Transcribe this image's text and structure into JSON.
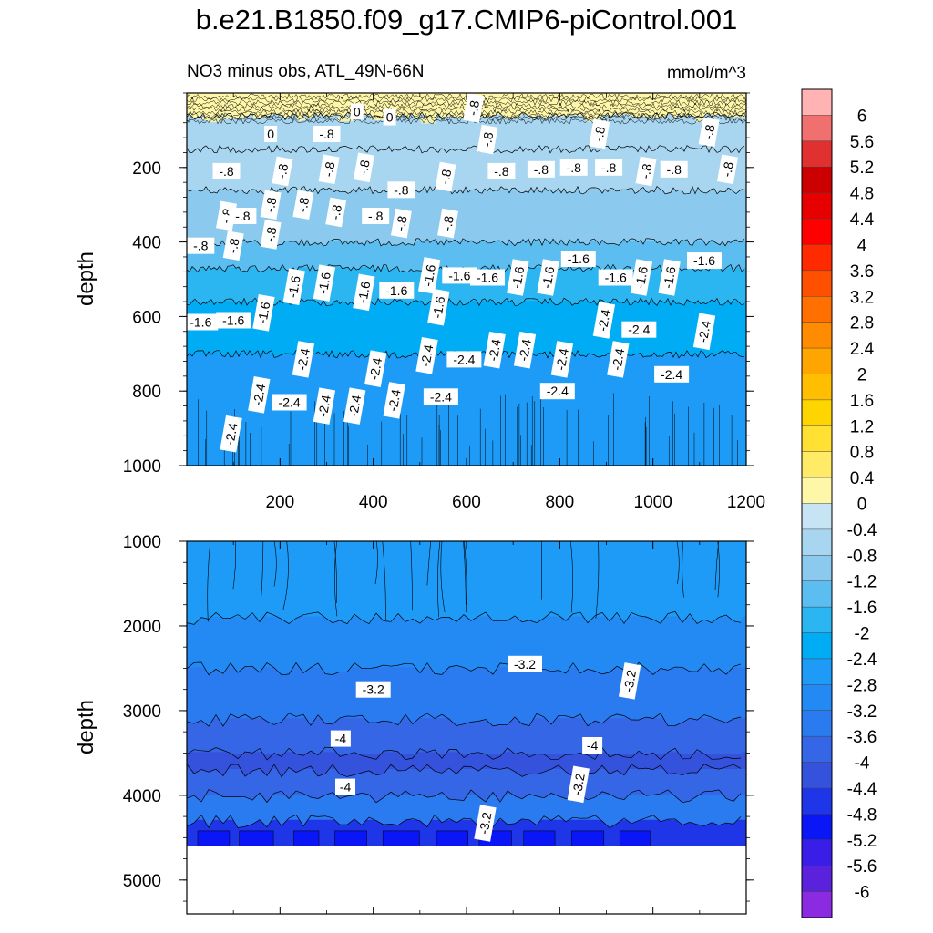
{
  "figure": {
    "title": "b.e21.B1850.f09_g17.CMIP6-piControl.001",
    "subtitle_left": "NO3 minus obs, ATL_49N-66N",
    "units": "mmol/m^3"
  },
  "chart_data": [
    {
      "type": "contour",
      "panel": "upper",
      "ylabel": "depth",
      "xlabel": "",
      "xlim": [
        0,
        1200
      ],
      "ylim": [
        1000,
        0
      ],
      "x_ticks": [
        200,
        400,
        600,
        800,
        1000,
        1200
      ],
      "y_ticks": [
        200,
        400,
        600,
        800,
        1000
      ],
      "bands": [
        {
          "depth_top": 0,
          "depth_bottom": 60,
          "value": 0.2
        },
        {
          "depth_top": 60,
          "depth_bottom": 150,
          "value": -0.5
        },
        {
          "depth_top": 150,
          "depth_bottom": 260,
          "value": -0.8
        },
        {
          "depth_top": 260,
          "depth_bottom": 400,
          "value": -1.1
        },
        {
          "depth_top": 400,
          "depth_bottom": 470,
          "value": -1.4
        },
        {
          "depth_top": 470,
          "depth_bottom": 560,
          "value": -1.8
        },
        {
          "depth_top": 560,
          "depth_bottom": 700,
          "value": -2.2
        },
        {
          "depth_top": 700,
          "depth_bottom": 1000,
          "value": -2.6
        }
      ],
      "contour_labels": [
        {
          "text": "0",
          "x": 180,
          "depth": 110
        },
        {
          "text": "0",
          "x": 365,
          "depth": 50
        },
        {
          "text": "0",
          "x": 435,
          "depth": 65
        },
        {
          "text": "-.8",
          "x": 615,
          "depth": 40
        },
        {
          "text": "-.8",
          "x": 300,
          "depth": 110
        },
        {
          "text": "-.8",
          "x": 645,
          "depth": 125
        },
        {
          "text": "-.8",
          "x": 885,
          "depth": 110
        },
        {
          "text": "-.8",
          "x": 1120,
          "depth": 105
        },
        {
          "text": "-.8",
          "x": 85,
          "depth": 210
        },
        {
          "text": "-.8",
          "x": 205,
          "depth": 210
        },
        {
          "text": "-.8",
          "x": 305,
          "depth": 205
        },
        {
          "text": "-.8",
          "x": 380,
          "depth": 200
        },
        {
          "text": "-.8",
          "x": 555,
          "depth": 225
        },
        {
          "text": "-.8",
          "x": 675,
          "depth": 210
        },
        {
          "text": "-.8",
          "x": 760,
          "depth": 205
        },
        {
          "text": "-.8",
          "x": 830,
          "depth": 200
        },
        {
          "text": "-.8",
          "x": 905,
          "depth": 200
        },
        {
          "text": "-.8",
          "x": 985,
          "depth": 210
        },
        {
          "text": "-.8",
          "x": 1045,
          "depth": 205
        },
        {
          "text": "-.8",
          "x": 1160,
          "depth": 205
        },
        {
          "text": "-.8",
          "x": 85,
          "depth": 330
        },
        {
          "text": "-.8",
          "x": 120,
          "depth": 330
        },
        {
          "text": "-.8",
          "x": 180,
          "depth": 300
        },
        {
          "text": "-.8",
          "x": 250,
          "depth": 300
        },
        {
          "text": "-.8",
          "x": 320,
          "depth": 320
        },
        {
          "text": "-.8",
          "x": 405,
          "depth": 330
        },
        {
          "text": "-.8",
          "x": 460,
          "depth": 260
        },
        {
          "text": "-.8",
          "x": 560,
          "depth": 350
        },
        {
          "text": "-.8",
          "x": 30,
          "depth": 410
        },
        {
          "text": "-.8",
          "x": 100,
          "depth": 410
        },
        {
          "text": "-.8",
          "x": 180,
          "depth": 380
        },
        {
          "text": "-.8",
          "x": 460,
          "depth": 350
        },
        {
          "text": "-1.6",
          "x": 30,
          "depth": 615
        },
        {
          "text": "-1.6",
          "x": 100,
          "depth": 610
        },
        {
          "text": "-1.6",
          "x": 165,
          "depth": 590
        },
        {
          "text": "-1.6",
          "x": 230,
          "depth": 520
        },
        {
          "text": "-1.6",
          "x": 295,
          "depth": 510
        },
        {
          "text": "-1.6",
          "x": 380,
          "depth": 535
        },
        {
          "text": "-1.6",
          "x": 450,
          "depth": 530
        },
        {
          "text": "-1.6",
          "x": 520,
          "depth": 490
        },
        {
          "text": "-1.6",
          "x": 585,
          "depth": 490
        },
        {
          "text": "-1.6",
          "x": 645,
          "depth": 495
        },
        {
          "text": "-1.6",
          "x": 710,
          "depth": 495
        },
        {
          "text": "-1.6",
          "x": 775,
          "depth": 495
        },
        {
          "text": "-1.6",
          "x": 840,
          "depth": 445
        },
        {
          "text": "-1.6",
          "x": 920,
          "depth": 495
        },
        {
          "text": "-1.6",
          "x": 975,
          "depth": 495
        },
        {
          "text": "-1.6",
          "x": 1035,
          "depth": 495
        },
        {
          "text": "-1.6",
          "x": 1110,
          "depth": 450
        },
        {
          "text": "-1.6",
          "x": 540,
          "depth": 575
        },
        {
          "text": "-2.4",
          "x": 895,
          "depth": 610
        },
        {
          "text": "-2.4",
          "x": 970,
          "depth": 635
        },
        {
          "text": "-2.4",
          "x": 1110,
          "depth": 640
        },
        {
          "text": "-2.4",
          "x": 250,
          "depth": 715
        },
        {
          "text": "-2.4",
          "x": 515,
          "depth": 705
        },
        {
          "text": "-2.4",
          "x": 595,
          "depth": 715
        },
        {
          "text": "-2.4",
          "x": 660,
          "depth": 690
        },
        {
          "text": "-2.4",
          "x": 725,
          "depth": 690
        },
        {
          "text": "-2.4",
          "x": 805,
          "depth": 715
        },
        {
          "text": "-2.4",
          "x": 925,
          "depth": 715
        },
        {
          "text": "-2.4",
          "x": 1040,
          "depth": 755
        },
        {
          "text": "-2.4",
          "x": 405,
          "depth": 740
        },
        {
          "text": "-2.4",
          "x": 155,
          "depth": 810
        },
        {
          "text": "-2.4",
          "x": 220,
          "depth": 830
        },
        {
          "text": "-2.4",
          "x": 295,
          "depth": 840
        },
        {
          "text": "-2.4",
          "x": 360,
          "depth": 840
        },
        {
          "text": "-2.4",
          "x": 445,
          "depth": 825
        },
        {
          "text": "-2.4",
          "x": 545,
          "depth": 815
        },
        {
          "text": "-2.4",
          "x": 795,
          "depth": 800
        },
        {
          "text": "-2.4",
          "x": 95,
          "depth": 915
        }
      ]
    },
    {
      "type": "contour",
      "panel": "lower",
      "ylabel": "depth",
      "xlabel": "",
      "xlim": [
        0,
        1200
      ],
      "ylim": [
        5400,
        1000
      ],
      "x_ticks": [
        200,
        400,
        600,
        800,
        1000,
        1200
      ],
      "y_ticks": [
        1000,
        2000,
        3000,
        4000,
        5000
      ],
      "data_bottom_depth": 4600,
      "bands": [
        {
          "depth_top": 1000,
          "depth_bottom": 1900,
          "value": -2.5
        },
        {
          "depth_top": 1900,
          "depth_bottom": 2500,
          "value": -2.9
        },
        {
          "depth_top": 2500,
          "depth_bottom": 3100,
          "value": -3.3
        },
        {
          "depth_top": 3100,
          "depth_bottom": 3500,
          "value": -3.8
        },
        {
          "depth_top": 3500,
          "depth_bottom": 3700,
          "value": -4.2
        },
        {
          "depth_top": 3700,
          "depth_bottom": 4000,
          "value": -3.8
        },
        {
          "depth_top": 4000,
          "depth_bottom": 4300,
          "value": -3.3
        },
        {
          "depth_top": 4300,
          "depth_bottom": 4600,
          "value": -4.6
        }
      ],
      "contour_labels": [
        {
          "text": "-3.2",
          "x": 400,
          "depth": 2750
        },
        {
          "text": "-3.2",
          "x": 725,
          "depth": 2450
        },
        {
          "text": "-3.2",
          "x": 950,
          "depth": 2650
        },
        {
          "text": "-4",
          "x": 330,
          "depth": 3330
        },
        {
          "text": "-4",
          "x": 870,
          "depth": 3410
        },
        {
          "text": "-4",
          "x": 340,
          "depth": 3900
        },
        {
          "text": "-3.2",
          "x": 840,
          "depth": 3870
        },
        {
          "text": "-3.2",
          "x": 640,
          "depth": 4330
        }
      ]
    }
  ],
  "colorbar": {
    "labels": [
      "6",
      "5.6",
      "5.2",
      "4.8",
      "4.4",
      "4",
      "3.6",
      "3.2",
      "2.8",
      "2.4",
      "2",
      "1.6",
      "1.2",
      "0.8",
      "0.4",
      "0",
      "-0.4",
      "-0.8",
      "-1.2",
      "-1.6",
      "-2",
      "-2.4",
      "-2.8",
      "-3.2",
      "-3.6",
      "-4",
      "-4.4",
      "-4.8",
      "-5.2",
      "-5.6",
      "-6"
    ],
    "colors": [
      "#ffb3b3",
      "#f07070",
      "#e03030",
      "#cc0000",
      "#e60000",
      "#ff0000",
      "#ff2a00",
      "#ff5000",
      "#ff7000",
      "#ff8c00",
      "#ffa500",
      "#ffbf00",
      "#ffd500",
      "#ffe033",
      "#ffeb66",
      "#fff7a8",
      "#c6e4f4",
      "#a8d6f0",
      "#8bc9ee",
      "#5cbdf0",
      "#2bb6f2",
      "#00adf5",
      "#1d9bf7",
      "#228af2",
      "#2a7af0",
      "#3466e6",
      "#3552dd",
      "#1f35e8",
      "#0a16f5",
      "#3a1de6",
      "#5a22dc",
      "#8a2be2"
    ]
  }
}
